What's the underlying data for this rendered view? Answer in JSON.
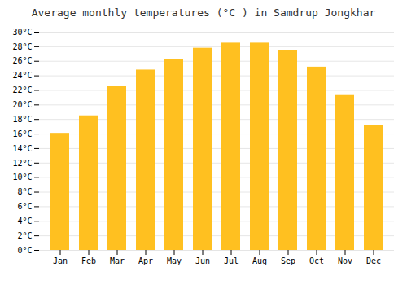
{
  "chart_data": {
    "type": "bar",
    "title": "Average monthly temperatures (°C ) in Samdrup Jongkhar",
    "categories": [
      "Jan",
      "Feb",
      "Mar",
      "Apr",
      "May",
      "Jun",
      "Jul",
      "Aug",
      "Sep",
      "Oct",
      "Nov",
      "Dec"
    ],
    "values": [
      16.1,
      18.5,
      22.5,
      24.8,
      26.2,
      27.8,
      28.5,
      28.5,
      27.5,
      25.2,
      21.3,
      17.2
    ],
    "color": "#FFC020",
    "ylim": [
      0,
      30
    ],
    "yticks": [
      {
        "value": 0,
        "label": "0°C"
      },
      {
        "value": 2,
        "label": "2°C"
      },
      {
        "value": 4,
        "label": "4°C"
      },
      {
        "value": 6,
        "label": "6°C"
      },
      {
        "value": 8,
        "label": "8°C"
      },
      {
        "value": 10,
        "label": "10°C"
      },
      {
        "value": 12,
        "label": "12°C"
      },
      {
        "value": 14,
        "label": "14°C"
      },
      {
        "value": 16,
        "label": "16°C"
      },
      {
        "value": 18,
        "label": "18°C"
      },
      {
        "value": 20,
        "label": "20°C"
      },
      {
        "value": 22,
        "label": "22°C"
      },
      {
        "value": 24,
        "label": "24°C"
      },
      {
        "value": 26,
        "label": "26°C"
      },
      {
        "value": 28,
        "label": "28°C"
      },
      {
        "value": 30,
        "label": "30°C"
      }
    ],
    "grid": true
  }
}
